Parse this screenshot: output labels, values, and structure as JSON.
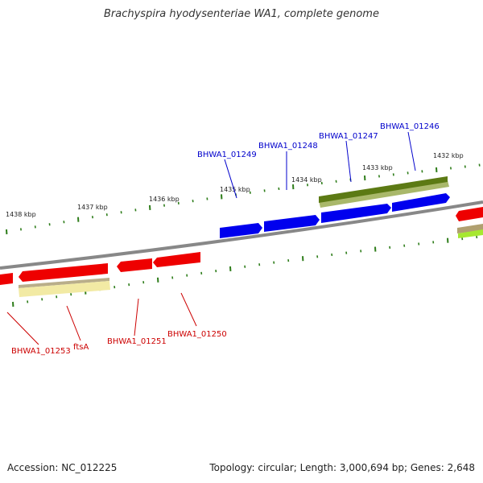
{
  "title": "Brachyspira hyodysenteriae WA1, complete genome",
  "footer": {
    "accession": "Accession: NC_012225",
    "summary": "Topology: circular; Length: 3,000,694 bp; Genes: 2,648"
  },
  "colors": {
    "forward_cds": "#0000ee",
    "reverse_cds": "#ee0000",
    "forward_gene": "#6b7f1a",
    "reverse_gene": "#f0e8a0",
    "backbone": "#808080",
    "ticks": "#2e7d1a",
    "forward_label": "#0000cc",
    "reverse_label": "#cc0000"
  },
  "scale_labels": [
    "1438 kbp",
    "1437 kbp",
    "1436 kbp",
    "1435 kbp",
    "1434 kbp",
    "1433 kbp",
    "1432 kbp"
  ],
  "forward_labels": [
    "BHWA1_01249",
    "BHWA1_01248",
    "BHWA1_01247",
    "BHWA1_01246"
  ],
  "reverse_labels": [
    "BHWA1_01253",
    "ftsA",
    "BHWA1_01251",
    "BHWA1_01250"
  ]
}
